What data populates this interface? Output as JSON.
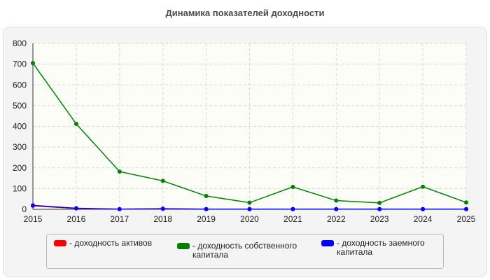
{
  "chart_data": {
    "type": "line",
    "title": "Динамика показателей доходности",
    "x": [
      "2015",
      "2016",
      "2017",
      "2018",
      "2019",
      "2020",
      "2021",
      "2022",
      "2023",
      "2024",
      "2025"
    ],
    "ylim": [
      0,
      800
    ],
    "yticks": [
      "0",
      "100",
      "200",
      "300",
      "400",
      "500",
      "600",
      "700",
      "800"
    ],
    "grid": true,
    "legend_position": "bottom",
    "series": [
      {
        "name": "- доходность активов",
        "color": "#ff0000",
        "values": [
          17,
          4,
          1,
          2,
          1,
          1,
          1,
          1,
          1,
          1,
          1
        ]
      },
      {
        "name": "- доходность собственного капитала",
        "color": "#008000",
        "values": [
          705,
          412,
          182,
          137,
          64,
          32,
          108,
          42,
          31,
          109,
          33
        ]
      },
      {
        "name": "- доходность заемного капитала",
        "color": "#0000ff",
        "values": [
          19,
          5,
          1,
          3,
          1,
          1,
          1,
          1,
          1,
          1,
          1
        ]
      }
    ]
  }
}
